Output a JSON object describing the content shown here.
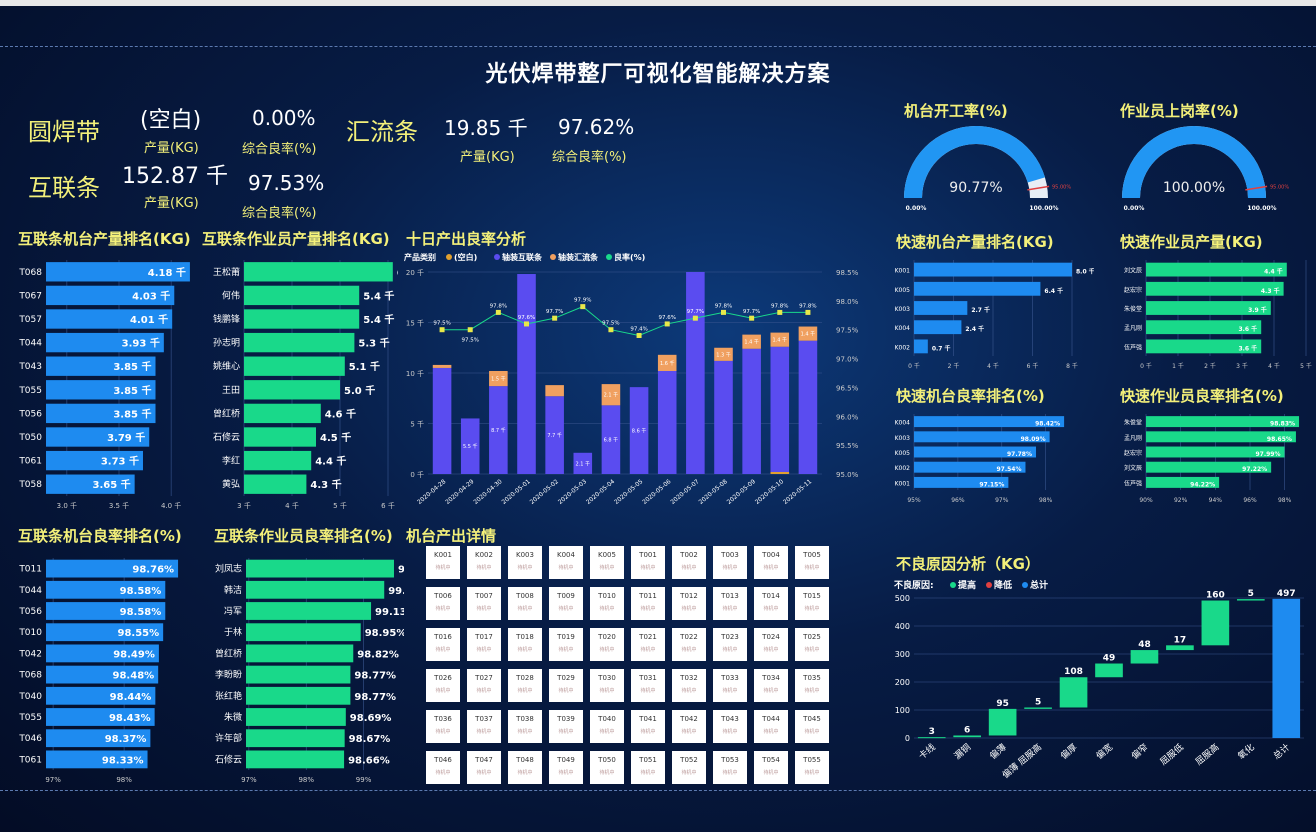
{
  "title": "光伏焊带整厂可视化智能解决方案",
  "kpis": {
    "round": {
      "label": "圆焊带",
      "value": "(空白)",
      "value_label": "产量(KG)",
      "rate": "0.00%",
      "rate_label": "综合良率(%)"
    },
    "bus": {
      "label": "汇流条",
      "value": "19.85 千",
      "value_label": "产量(KG)",
      "rate": "97.62%",
      "rate_label": "综合良率(%)"
    },
    "inter": {
      "label": "互联条",
      "value": "152.87 千",
      "value_label": "产量(KG)",
      "rate": "97.53%",
      "rate_label": "综合良率(%)"
    }
  },
  "sections": {
    "machine_output": "互联条机台产量排名(KG)",
    "operator_output": "互联条作业员产量排名(KG)",
    "ten_day": "十日产出良率分析",
    "machine_yield": "互联条机台良率排名(%)",
    "operator_yield": "互联条作业员良率排名(%)",
    "machine_detail": "机台产出详情",
    "gauge1": "机台开工率(%)",
    "gauge2": "作业员上岗率(%)",
    "fast_machine_output": "快速机台产量排名(KG)",
    "fast_operator_output": "快速作业员产量(KG)",
    "fast_machine_yield": "快速机台良率排名(%)",
    "fast_operator_yield": "快速作业员良率排名(%)",
    "defect": "不良原因分析（KG）"
  },
  "chart_data": [
    {
      "type": "bar",
      "name": "machine_output",
      "categories": [
        "T068",
        "T067",
        "T057",
        "T044",
        "T043",
        "T055",
        "T056",
        "T050",
        "T061",
        "T058"
      ],
      "values": [
        4.18,
        4.03,
        4.01,
        3.93,
        3.85,
        3.85,
        3.85,
        3.79,
        3.73,
        3.65
      ],
      "labels": [
        "4.18 千",
        "4.03 千",
        "4.01 千",
        "3.93 千",
        "3.85 千",
        "3.85 千",
        "3.85 千",
        "3.79 千",
        "3.73 千",
        "3.65 千"
      ],
      "xlim": [
        2.8,
        4.2
      ],
      "ticks": [
        "3.0 千",
        "3.5 千",
        "4.0 千"
      ],
      "tick_values": [
        3.0,
        3.5,
        4.0
      ],
      "color": "#1e8bf0"
    },
    {
      "type": "bar",
      "name": "operator_output",
      "categories": [
        "王松莆",
        "何伟",
        "钱鹏锋",
        "孙志明",
        "姚维心",
        "王田",
        "曾红桥",
        "石修云",
        "李红",
        "黄弘"
      ],
      "values": [
        6.1,
        5.4,
        5.4,
        5.3,
        5.1,
        5.0,
        4.6,
        4.5,
        4.4,
        4.3
      ],
      "labels": [
        "6.1 千",
        "5.4 千",
        "5.4 千",
        "5.3 千",
        "5.1 千",
        "5.0 千",
        "4.6 千",
        "4.5 千",
        "4.4 千",
        "4.3 千"
      ],
      "xlim": [
        3,
        6
      ],
      "ticks": [
        "3 千",
        "4 千",
        "5 千",
        "6 千"
      ],
      "tick_values": [
        3,
        4,
        5,
        6
      ],
      "color": "#19d98a"
    },
    {
      "type": "bar",
      "name": "ten_day",
      "legend_title": "产品类别",
      "legend": [
        "(空白)",
        "轴装互联条",
        "轴装汇流条",
        "良率(%)"
      ],
      "categories": [
        "2020-04-28",
        "2020-04-29",
        "2020-04-30",
        "2020-05-01",
        "2020-05-02",
        "2020-05-03",
        "2020-05-04",
        "2020-05-05",
        "2020-05-06",
        "2020-05-07",
        "2020-05-08",
        "2020-05-09",
        "2020-05-10",
        "2020-05-11"
      ],
      "inter": [
        10.5,
        5.5,
        8.7,
        19.8,
        7.7,
        2.1,
        6.8,
        8.6,
        10.2,
        20.0,
        11.2,
        12.4,
        12.6,
        13.2
      ],
      "inter_labels": [
        "",
        "5.5 千",
        "8.7 千",
        "",
        "7.7 千",
        "2.1 千",
        "6.8 千",
        "8.6 千",
        "",
        "",
        "",
        "",
        "",
        ""
      ],
      "bus": [
        0.3,
        0,
        1.5,
        0,
        1.1,
        0,
        2.1,
        0,
        1.6,
        0,
        1.3,
        1.4,
        1.4,
        1.4
      ],
      "bus_labels": [
        "",
        "",
        "1.5 千",
        "",
        "",
        "",
        "2.1 千",
        "",
        "1.6 千",
        "",
        "1.3 千",
        "1.4 千",
        "1.4 千",
        "1.4 千"
      ],
      "blank": [
        0,
        0,
        0,
        0,
        0,
        0,
        0,
        0,
        0,
        0,
        0,
        0,
        0.2,
        0
      ],
      "yield": [
        97.5,
        97.5,
        97.8,
        97.6,
        97.7,
        97.9,
        97.5,
        97.4,
        97.6,
        97.7,
        97.8,
        97.7,
        97.8,
        97.8
      ],
      "yield_labels": [
        "97.5%",
        "97.5%",
        "97.8%",
        "97.6%",
        "97.7%",
        "97.9%",
        "97.5%",
        "97.4%",
        "97.6%",
        "97.7%",
        "97.8%",
        "97.7%",
        "97.8%",
        "97.8%"
      ],
      "ylim": [
        0,
        20
      ],
      "yticks": [
        "0 千",
        "5 千",
        "10 千",
        "15 千",
        "20 千"
      ],
      "ytick_values": [
        0,
        5,
        10,
        15,
        20
      ],
      "y2lim": [
        95.0,
        98.5
      ],
      "y2ticks": [
        "95.0%",
        "95.5%",
        "96.0%",
        "96.5%",
        "97.0%",
        "97.5%",
        "98.0%",
        "98.5%"
      ],
      "y2tick_values": [
        95.0,
        95.5,
        96.0,
        96.5,
        97.0,
        97.5,
        98.0,
        98.5
      ]
    },
    {
      "type": "bar",
      "name": "machine_yield",
      "categories": [
        "T011",
        "T044",
        "T056",
        "T010",
        "T042",
        "T068",
        "T040",
        "T055",
        "T046",
        "T061"
      ],
      "values": [
        98.76,
        98.58,
        98.58,
        98.55,
        98.49,
        98.48,
        98.44,
        98.43,
        98.37,
        98.33
      ],
      "labels": [
        "98.76%",
        "98.58%",
        "98.58%",
        "98.55%",
        "98.49%",
        "98.48%",
        "98.44%",
        "98.43%",
        "98.37%",
        "98.33%"
      ],
      "xlim": [
        96.9,
        98.9
      ],
      "ticks": [
        "97%",
        "98%"
      ],
      "tick_values": [
        97,
        98
      ],
      "color": "#1e8bf0"
    },
    {
      "type": "bar",
      "name": "operator_yield",
      "categories": [
        "刘凤志",
        "韩洁",
        "冯军",
        "于林",
        "曾红桥",
        "李盼盼",
        "张红艳",
        "朱微",
        "许年部",
        "石修云"
      ],
      "values": [
        99.53,
        99.36,
        99.13,
        98.95,
        98.82,
        98.77,
        98.77,
        98.69,
        98.67,
        98.66
      ],
      "labels": [
        "99.53%",
        "99.36%",
        "99.13%",
        "98.95%",
        "98.82%",
        "98.77%",
        "98.77%",
        "98.69%",
        "98.67%",
        "98.66%"
      ],
      "xlim": [
        96.95,
        99.6
      ],
      "ticks": [
        "97%",
        "98%",
        "99%"
      ],
      "tick_values": [
        97,
        98,
        99
      ],
      "color": "#19d98a"
    },
    {
      "type": "bar",
      "name": "fast_machine_output",
      "categories": [
        "K001",
        "K005",
        "K003",
        "K004",
        "K002"
      ],
      "values": [
        8.0,
        6.4,
        2.7,
        2.4,
        0.7
      ],
      "labels": [
        "8.0 千",
        "6.4 千",
        "2.7 千",
        "2.4 千",
        "0.7 千"
      ],
      "xlim": [
        0,
        8
      ],
      "ticks": [
        "0 千",
        "2 千",
        "4 千",
        "6 千",
        "8 千"
      ],
      "tick_values": [
        0,
        2,
        4,
        6,
        8
      ],
      "color": "#1e8bf0"
    },
    {
      "type": "bar",
      "name": "fast_operator_output",
      "categories": [
        "刘文辰",
        "赵宏宗",
        "朱俊堂",
        "孟凡刚",
        "伍芦强"
      ],
      "values": [
        4.4,
        4.3,
        3.9,
        3.6,
        3.6
      ],
      "labels": [
        "4.4 千",
        "4.3 千",
        "3.9 千",
        "3.6 千",
        "3.6 千"
      ],
      "xlim": [
        0,
        5
      ],
      "ticks": [
        "0 千",
        "1 千",
        "2 千",
        "3 千",
        "4 千",
        "5 千"
      ],
      "tick_values": [
        0,
        1,
        2,
        3,
        4,
        5
      ],
      "color": "#19d98a"
    },
    {
      "type": "bar",
      "name": "fast_machine_yield",
      "categories": [
        "K004",
        "K003",
        "K005",
        "K002",
        "K001"
      ],
      "values": [
        98.42,
        98.09,
        97.78,
        97.54,
        97.15
      ],
      "labels": [
        "98.42%",
        "98.09%",
        "97.78%",
        "97.54%",
        "97.15%"
      ],
      "xlim": [
        95,
        98.6
      ],
      "ticks": [
        "95%",
        "96%",
        "97%",
        "98%"
      ],
      "tick_values": [
        95,
        96,
        97,
        98
      ],
      "color": "#1e8bf0"
    },
    {
      "type": "bar",
      "name": "fast_operator_yield",
      "categories": [
        "朱俊堂",
        "孟凡刚",
        "赵宏宗",
        "刘文辰",
        "伍芦强"
      ],
      "values": [
        98.83,
        98.65,
        97.99,
        97.22,
        94.22
      ],
      "labels": [
        "98.83%",
        "98.65%",
        "97.99%",
        "97.22%",
        "94.22%"
      ],
      "xlim": [
        90,
        99
      ],
      "ticks": [
        "90%",
        "92%",
        "94%",
        "96%",
        "98%"
      ],
      "tick_values": [
        90,
        92,
        94,
        96,
        98
      ],
      "color": "#19d98a"
    },
    {
      "type": "bar",
      "name": "defect",
      "legend_title": "不良原因:",
      "legend": [
        "提高",
        "降低",
        "总计"
      ],
      "categories": [
        "卡线",
        "漏铜",
        "偏薄",
        "偏薄 屈服高",
        "偏厚",
        "偏宽",
        "偏窄",
        "屈服低",
        "屈服高",
        "氧化",
        "总计"
      ],
      "values": [
        3,
        6,
        95,
        5,
        108,
        49,
        48,
        17,
        160,
        5,
        497
      ],
      "ylim": [
        0,
        500
      ],
      "yticks": [
        "0",
        "100",
        "200",
        "300",
        "400",
        "500"
      ],
      "ytick_values": [
        0,
        100,
        200,
        300,
        400,
        500
      ]
    }
  ],
  "gauges": [
    {
      "value": 90.77,
      "label": "90.77%",
      "min_label": "0.00%",
      "max_label": "100.00%",
      "threshold_label": "95.00%"
    },
    {
      "value": 100.0,
      "label": "100.00%",
      "min_label": "0.00%",
      "max_label": "100.00%",
      "threshold_label": "95.00%"
    }
  ],
  "machine_tiles": [
    {
      "id": "K001",
      "status": "待机中"
    },
    {
      "id": "K002",
      "status": "待机中"
    },
    {
      "id": "K003",
      "status": "待机中"
    },
    {
      "id": "K004",
      "status": "待机中"
    },
    {
      "id": "K005",
      "status": "待机中"
    },
    {
      "id": "T001",
      "status": "待机中"
    },
    {
      "id": "T002",
      "status": "待机中"
    },
    {
      "id": "T003",
      "status": "待机中"
    },
    {
      "id": "T004",
      "status": "待机中"
    },
    {
      "id": "T005",
      "status": "待机中"
    },
    {
      "id": "T006",
      "status": "待机中"
    },
    {
      "id": "T007",
      "status": "待机中"
    },
    {
      "id": "T008",
      "status": "待机中"
    },
    {
      "id": "T009",
      "status": "待机中"
    },
    {
      "id": "T010",
      "status": "待机中"
    },
    {
      "id": "T011",
      "status": "待机中"
    },
    {
      "id": "T012",
      "status": "待机中"
    },
    {
      "id": "T013",
      "status": "待机中"
    },
    {
      "id": "T014",
      "status": "待机中"
    },
    {
      "id": "T015",
      "status": "待机中"
    },
    {
      "id": "T016",
      "status": "待机中"
    },
    {
      "id": "T017",
      "status": "待机中"
    },
    {
      "id": "T018",
      "status": "待机中"
    },
    {
      "id": "T019",
      "status": "待机中"
    },
    {
      "id": "T020",
      "status": "待机中"
    },
    {
      "id": "T021",
      "status": "待机中"
    },
    {
      "id": "T022",
      "status": "待机中"
    },
    {
      "id": "T023",
      "status": "待机中"
    },
    {
      "id": "T024",
      "status": "待机中"
    },
    {
      "id": "T025",
      "status": "待机中"
    },
    {
      "id": "T026",
      "status": "待机中"
    },
    {
      "id": "T027",
      "status": "待机中"
    },
    {
      "id": "T028",
      "status": "待机中"
    },
    {
      "id": "T029",
      "status": "待机中"
    },
    {
      "id": "T030",
      "status": "待机中"
    },
    {
      "id": "T031",
      "status": "待机中"
    },
    {
      "id": "T032",
      "status": "待机中"
    },
    {
      "id": "T033",
      "status": "待机中"
    },
    {
      "id": "T034",
      "status": "待机中"
    },
    {
      "id": "T035",
      "status": "待机中"
    },
    {
      "id": "T036",
      "status": "待机中"
    },
    {
      "id": "T037",
      "status": "待机中"
    },
    {
      "id": "T038",
      "status": "待机中"
    },
    {
      "id": "T039",
      "status": "待机中"
    },
    {
      "id": "T040",
      "status": "待机中"
    },
    {
      "id": "T041",
      "status": "待机中"
    },
    {
      "id": "T042",
      "status": "待机中"
    },
    {
      "id": "T043",
      "status": "待机中"
    },
    {
      "id": "T044",
      "status": "待机中"
    },
    {
      "id": "T045",
      "status": "待机中"
    },
    {
      "id": "T046",
      "status": "待机中"
    },
    {
      "id": "T047",
      "status": "待机中"
    },
    {
      "id": "T048",
      "status": "待机中"
    },
    {
      "id": "T049",
      "status": "待机中"
    },
    {
      "id": "T050",
      "status": "待机中"
    },
    {
      "id": "T051",
      "status": "待机中"
    },
    {
      "id": "T052",
      "status": "待机中"
    },
    {
      "id": "T053",
      "status": "待机中"
    },
    {
      "id": "T054",
      "status": "待机中"
    },
    {
      "id": "T055",
      "status": "待机中"
    }
  ],
  "colors": {
    "blue": "#1e8bf0",
    "green": "#19d98a",
    "purple": "#5a4cf0",
    "orange": "#f0a060",
    "blank": "#e0a030",
    "yield_line": "#e8e84a",
    "red": "#e04040",
    "gauge_bg": "#e8eef5"
  }
}
